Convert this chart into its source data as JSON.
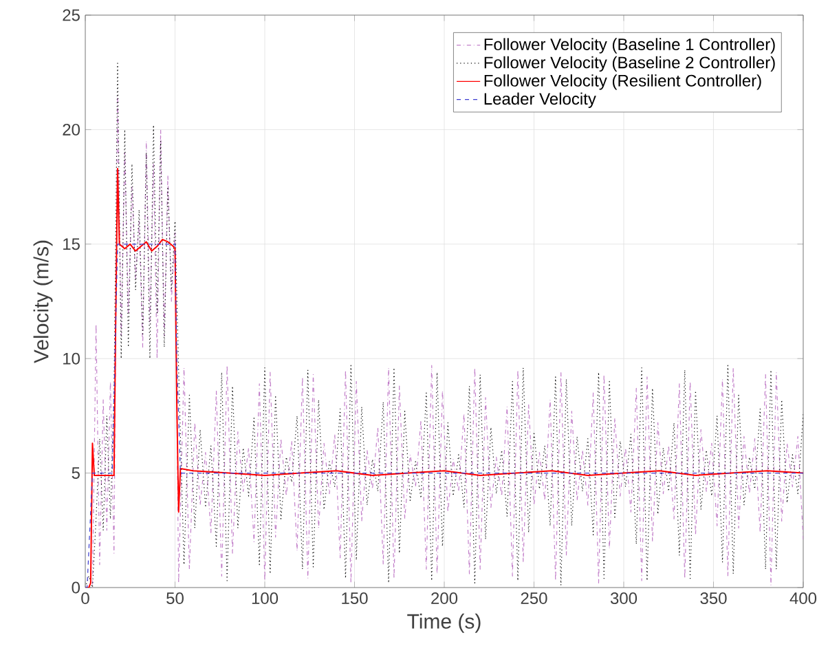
{
  "chart_data": {
    "type": "line",
    "xlabel": "Time (s)",
    "ylabel": "Velocity (m/s)",
    "xlim": [
      0,
      400
    ],
    "ylim": [
      0,
      25
    ],
    "xticks": [
      0,
      50,
      100,
      150,
      200,
      250,
      300,
      350,
      400
    ],
    "yticks": [
      0,
      5,
      10,
      15,
      20,
      25
    ],
    "grid": true,
    "legend": "top right",
    "x": [
      0,
      2,
      4,
      6,
      8,
      10,
      12,
      14,
      16,
      18,
      20,
      22,
      24,
      26,
      28,
      30,
      32,
      34,
      36,
      38,
      40,
      42,
      44,
      46,
      48,
      50,
      52,
      55,
      58,
      61,
      64,
      67,
      70,
      73,
      76,
      79,
      82,
      85,
      88,
      91,
      94,
      97,
      100,
      103,
      106,
      109,
      112,
      115,
      118,
      121,
      124,
      127,
      130,
      133,
      136,
      139,
      142,
      145,
      148,
      151,
      154,
      157,
      160,
      163,
      166,
      169,
      172,
      175,
      178,
      181,
      184,
      187,
      190,
      193,
      196,
      199,
      202,
      205,
      208,
      211,
      214,
      217,
      220,
      223,
      226,
      229,
      232,
      235,
      238,
      241,
      244,
      247,
      250,
      253,
      256,
      259,
      262,
      265,
      268,
      271,
      274,
      277,
      280,
      283,
      286,
      289,
      292,
      295,
      298,
      301,
      304,
      307,
      310,
      313,
      316,
      319,
      322,
      325,
      328,
      331,
      334,
      337,
      340,
      343,
      346,
      349,
      352,
      355,
      358,
      361,
      364,
      367,
      370,
      373,
      376,
      379,
      382,
      385,
      388,
      391,
      394,
      397,
      400
    ],
    "series": [
      {
        "name": "Follower Velocity (Baseline 1 Controller)",
        "color": "#c27fc9",
        "line_style": "dashdotted",
        "values": [
          0,
          0,
          0,
          11.5,
          1.0,
          8.2,
          2.5,
          9.0,
          1.5,
          21.5,
          11.0,
          19.0,
          12.0,
          17.5,
          13.5,
          16.0,
          10.5,
          19.5,
          11.5,
          18.5,
          10.0,
          20.0,
          11.0,
          18.0,
          12.5,
          15.5,
          0.2,
          9.6,
          0.8,
          7.2,
          3.6,
          5.9,
          2.4,
          8.6,
          0.5,
          9.7,
          1.5,
          6.8,
          4.2,
          6.1,
          2.0,
          8.9,
          0.3,
          9.4,
          2.2,
          6.5,
          4.0,
          6.4,
          1.6,
          9.2,
          0.4,
          9.3,
          2.6,
          6.3,
          4.1,
          6.7,
          1.3,
          9.5,
          0.2,
          9.0,
          2.9,
          6.0,
          4.3,
          7.0,
          1.0,
          9.6,
          0.4,
          8.8,
          3.0,
          5.8,
          4.4,
          7.3,
          0.8,
          9.7,
          0.6,
          8.6,
          3.3,
          5.6,
          4.2,
          7.6,
          0.6,
          9.6,
          0.8,
          8.3,
          3.5,
          5.7,
          4.0,
          7.9,
          0.5,
          9.5,
          1.1,
          8.0,
          3.6,
          5.9,
          3.8,
          8.2,
          0.3,
          9.4,
          1.4,
          7.7,
          3.8,
          6.0,
          3.6,
          8.5,
          0.2,
          9.3,
          1.7,
          7.4,
          4.0,
          6.1,
          3.3,
          8.7,
          0.3,
          9.2,
          2.0,
          7.2,
          4.1,
          6.2,
          3.0,
          8.9,
          0.4,
          9.0,
          2.3,
          6.9,
          4.2,
          6.3,
          2.7,
          9.1,
          0.5,
          9.6,
          2.6,
          6.6,
          4.1,
          6.5,
          2.4,
          9.3,
          0.1,
          9.4,
          2.9,
          6.3,
          4.4,
          6.6,
          2.1
        ]
      },
      {
        "name": "Follower Velocity (Baseline 2 Controller)",
        "color": "#000000",
        "line_style": "dotted",
        "values": [
          0,
          0.5,
          0,
          3.0,
          6.5,
          2.5,
          7.5,
          3.0,
          8.5,
          22.9,
          10.0,
          20.0,
          10.5,
          18.5,
          13.0,
          16.5,
          11.0,
          19.0,
          10.0,
          20.2,
          12.0,
          19.5,
          10.5,
          17.5,
          13.0,
          16.0,
          9.5,
          1.0,
          8.4,
          2.6,
          6.9,
          3.5,
          6.2,
          1.8,
          9.4,
          0.3,
          8.8,
          2.6,
          6.1,
          4.0,
          7.4,
          1.0,
          9.6,
          0.6,
          8.4,
          3.0,
          5.7,
          4.6,
          7.5,
          0.8,
          9.5,
          0.9,
          8.2,
          3.4,
          5.5,
          4.4,
          7.8,
          0.4,
          9.7,
          1.2,
          7.9,
          3.6,
          5.6,
          4.2,
          8.1,
          0.2,
          9.6,
          1.5,
          7.7,
          3.8,
          5.5,
          3.9,
          8.5,
          0.3,
          9.4,
          1.8,
          7.2,
          4.0,
          5.8,
          3.5,
          8.8,
          0.2,
          9.3,
          2.1,
          7.0,
          4.1,
          6.0,
          3.1,
          9.0,
          0.3,
          9.6,
          2.4,
          6.8,
          4.3,
          6.2,
          2.7,
          9.2,
          0.1,
          9.1,
          2.7,
          6.6,
          4.2,
          6.5,
          2.3,
          9.4,
          0.4,
          9.0,
          3.0,
          6.4,
          4.4,
          6.7,
          1.9,
          9.6,
          0.3,
          8.7,
          3.2,
          6.1,
          4.2,
          7.2,
          1.4,
          9.5,
          0.4,
          8.6,
          3.4,
          6.0,
          4.0,
          7.5,
          1.1,
          9.7,
          0.6,
          8.4,
          3.6,
          5.7,
          4.3,
          7.8,
          0.8,
          9.5,
          0.8,
          8.2,
          3.7,
          5.8,
          4.1,
          7.6
        ]
      },
      {
        "name": "Follower Velocity (Resilient Controller)",
        "color": "#ff0000",
        "line_style": "solid",
        "x": [
          0,
          2,
          3,
          4,
          5,
          15,
          16,
          17,
          18,
          19,
          22,
          25,
          28,
          31,
          34,
          37,
          40,
          43,
          46,
          49,
          50,
          51,
          52,
          53,
          60,
          80,
          100,
          120,
          140,
          160,
          180,
          200,
          220,
          240,
          260,
          280,
          300,
          320,
          340,
          360,
          380,
          400
        ],
        "values": [
          0,
          0,
          0.2,
          6.3,
          4.9,
          4.9,
          4.9,
          12.0,
          18.3,
          15.0,
          14.8,
          15.0,
          14.7,
          14.9,
          15.1,
          14.7,
          14.9,
          15.2,
          15.1,
          14.9,
          14.8,
          8.0,
          3.3,
          5.2,
          5.1,
          5.0,
          4.9,
          5.0,
          5.1,
          4.9,
          5.0,
          5.1,
          4.9,
          5.0,
          5.1,
          4.9,
          5.0,
          5.1,
          4.9,
          5.0,
          5.1,
          5.0
        ]
      },
      {
        "name": "Leader Velocity",
        "color": "#3b3bd0",
        "line_style": "dashed",
        "x": [
          0,
          1,
          4,
          15,
          18,
          50,
          51,
          53,
          400
        ],
        "values": [
          0,
          0,
          5,
          5,
          15,
          15,
          10,
          5,
          5
        ]
      }
    ]
  }
}
